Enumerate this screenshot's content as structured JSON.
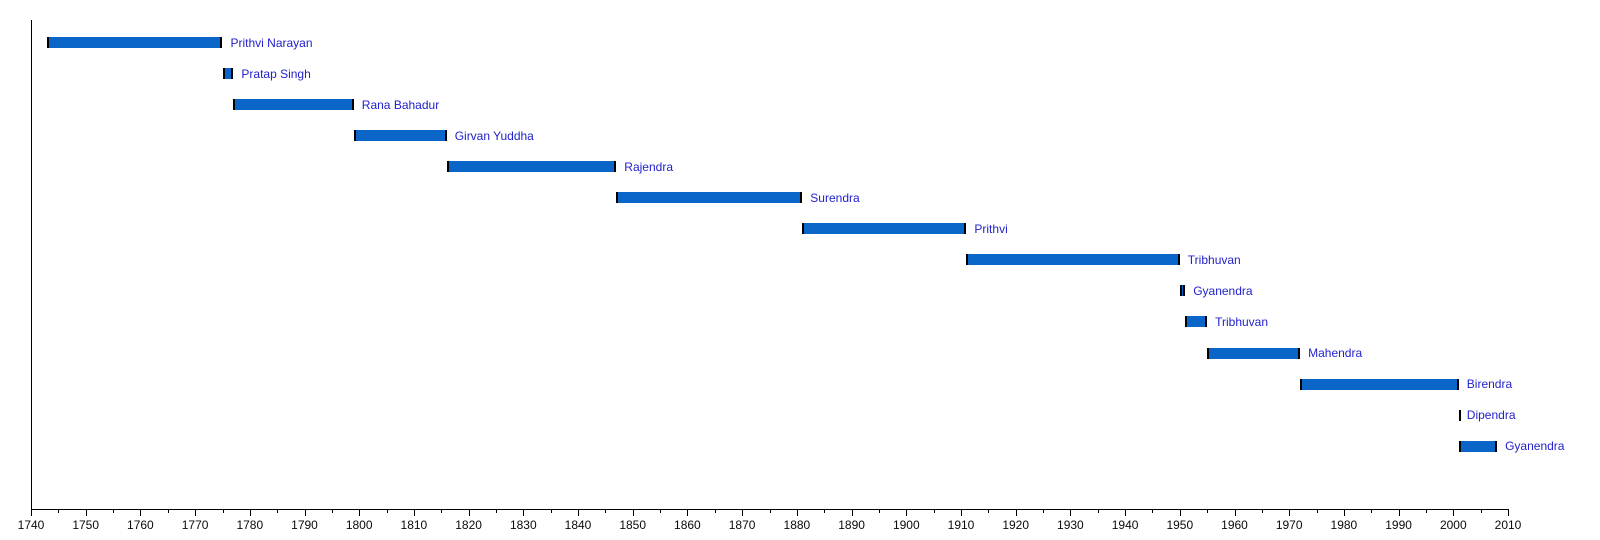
{
  "chart_data": {
    "type": "bar",
    "variant": "horizontal-timeline-gantt",
    "title": "",
    "xlabel": "",
    "ylabel": "",
    "legend": "none",
    "grid": "off",
    "bar_color": "#0966c8",
    "bar_cap_color": "#000000",
    "label_color": "#2222cc",
    "axis_color": "#000000",
    "x_axis": {
      "min": 1740,
      "max": 2010,
      "major_tick_interval": 10,
      "minor_tick_interval": 5,
      "tick_labels": [
        "1740",
        "1750",
        "1760",
        "1770",
        "1780",
        "1790",
        "1800",
        "1810",
        "1820",
        "1830",
        "1840",
        "1850",
        "1860",
        "1870",
        "1880",
        "1890",
        "1900",
        "1910",
        "1920",
        "1930",
        "1940",
        "1950",
        "1960",
        "1970",
        "1980",
        "1990",
        "2000",
        "2010"
      ]
    },
    "bars": [
      {
        "label": "Prithvi Narayan",
        "start": 1743,
        "end": 1775
      },
      {
        "label": "Pratap Singh",
        "start": 1775,
        "end": 1777
      },
      {
        "label": "Rana Bahadur",
        "start": 1777,
        "end": 1799
      },
      {
        "label": "Girvan Yuddha",
        "start": 1799,
        "end": 1816
      },
      {
        "label": "Rajendra",
        "start": 1816,
        "end": 1847
      },
      {
        "label": "Surendra",
        "start": 1847,
        "end": 1881
      },
      {
        "label": "Prithvi",
        "start": 1881,
        "end": 1911
      },
      {
        "label": "Tribhuvan",
        "start": 1911,
        "end": 1950
      },
      {
        "label": "Gyanendra",
        "start": 1950,
        "end": 1951
      },
      {
        "label": "Tribhuvan",
        "start": 1951,
        "end": 1955
      },
      {
        "label": "Mahendra",
        "start": 1955,
        "end": 1972
      },
      {
        "label": "Birendra",
        "start": 1972,
        "end": 2001
      },
      {
        "label": "Dipendra",
        "start": 2001,
        "end": 2001
      },
      {
        "label": "Gyanendra",
        "start": 2001,
        "end": 2008
      }
    ]
  }
}
